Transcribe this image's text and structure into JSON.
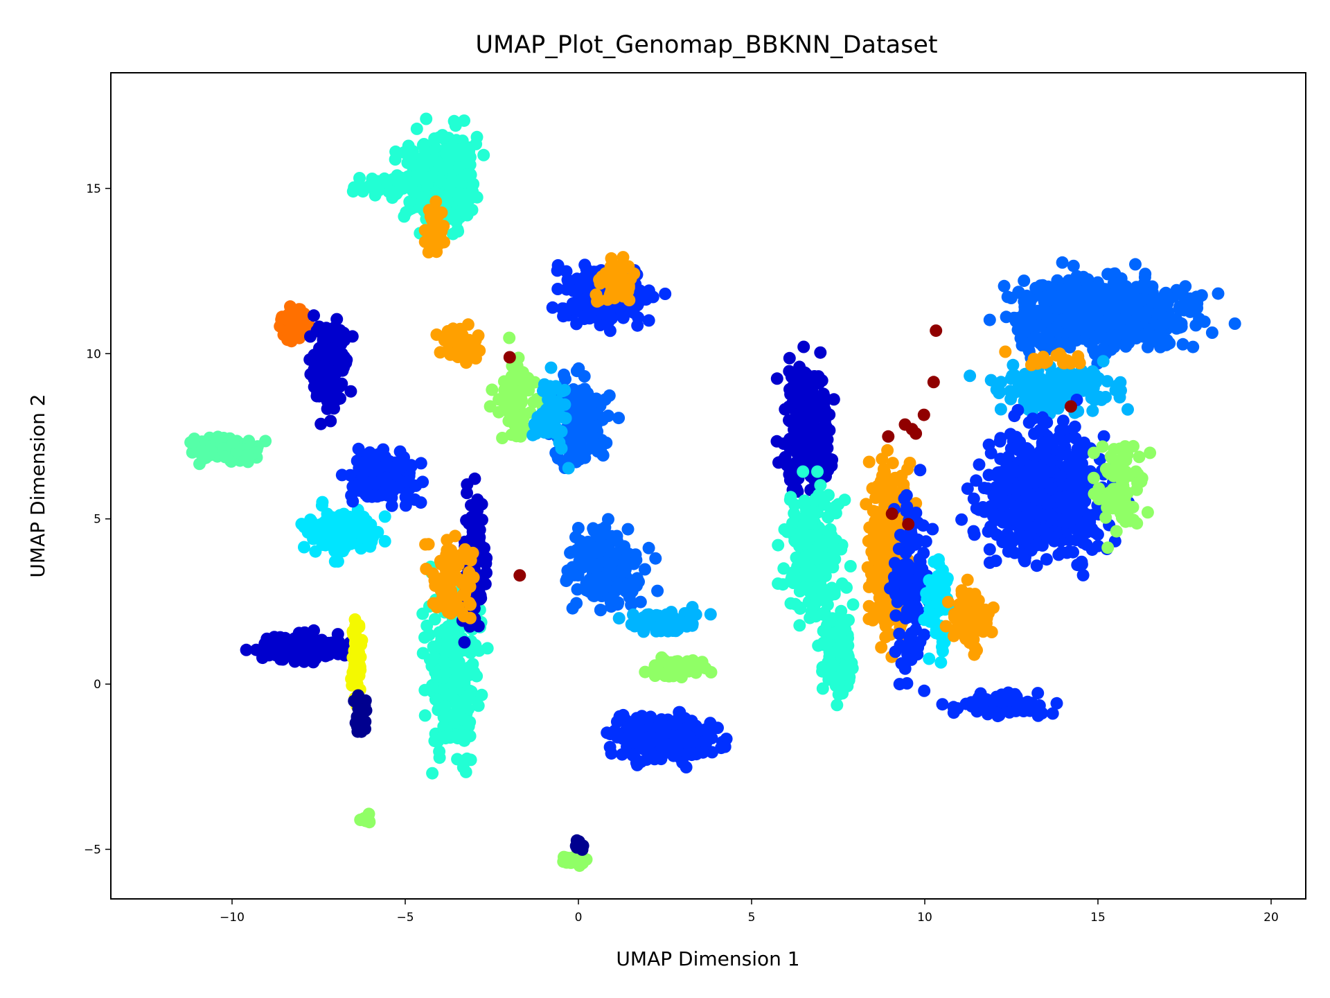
{
  "chart_data": {
    "type": "scatter",
    "title": "UMAP_Plot_Genomap_BBKNN_Dataset",
    "xlabel": "UMAP Dimension 1",
    "ylabel": "UMAP Dimension 2",
    "xlim": [
      -13.5,
      21
    ],
    "ylim": [
      -6.5,
      18.5
    ],
    "xticks": [
      -10,
      -5,
      0,
      5,
      10,
      15,
      20
    ],
    "yticks": [
      -5,
      0,
      5,
      10,
      15
    ],
    "xtick_labels": [
      "−10",
      "−5",
      "0",
      "5",
      "10",
      "15",
      "20"
    ],
    "ytick_labels": [
      "−5",
      "0",
      "5",
      "10",
      "15"
    ],
    "grid": false,
    "legend": "none",
    "colormap": "jet",
    "palette": {
      "navy": "#00008f",
      "darkblue": "#0000cd",
      "blue": "#0030ff",
      "azure": "#0066ff",
      "skyblue": "#00b4ff",
      "cyan": "#00e5ff",
      "aquamarine": "#22ffd4",
      "seagreen": "#55ffa8",
      "lightgreen": "#90ff66",
      "yellow": "#f4f900",
      "orange": "#ffa000",
      "darkorange": "#ff7000",
      "darkred": "#900000"
    },
    "clusters": [
      {
        "color": "aquamarine",
        "x": -4.0,
        "y": 15.3,
        "sx": 0.9,
        "sy": 1.2,
        "n": 320
      },
      {
        "color": "aquamarine",
        "x": -5.6,
        "y": 15.1,
        "sx": 0.7,
        "sy": 0.25,
        "n": 60
      },
      {
        "color": "orange",
        "x": -4.1,
        "y": 13.8,
        "sx": 0.25,
        "sy": 0.6,
        "n": 40
      },
      {
        "color": "darkorange",
        "x": -8.2,
        "y": 10.9,
        "sx": 0.5,
        "sy": 0.4,
        "n": 60
      },
      {
        "color": "darkblue",
        "x": -7.2,
        "y": 9.6,
        "sx": 0.45,
        "sy": 1.2,
        "n": 150
      },
      {
        "color": "seagreen",
        "x": -10.2,
        "y": 7.1,
        "sx": 0.9,
        "sy": 0.3,
        "n": 120
      },
      {
        "color": "cyan",
        "x": -6.8,
        "y": 4.6,
        "sx": 0.9,
        "sy": 0.6,
        "n": 140
      },
      {
        "color": "blue",
        "x": -5.6,
        "y": 6.3,
        "sx": 0.9,
        "sy": 0.7,
        "n": 160
      },
      {
        "color": "darkblue",
        "x": -8.0,
        "y": 1.1,
        "sx": 1.1,
        "sy": 0.35,
        "n": 180
      },
      {
        "color": "yellow",
        "x": -6.4,
        "y": 0.8,
        "sx": 0.12,
        "sy": 1.2,
        "n": 60
      },
      {
        "color": "navy",
        "x": -6.3,
        "y": -1.0,
        "sx": 0.15,
        "sy": 0.5,
        "n": 30
      },
      {
        "color": "aquamarine",
        "x": -3.6,
        "y": 0.5,
        "sx": 0.7,
        "sy": 2.3,
        "n": 260
      },
      {
        "color": "darkblue",
        "x": -3.0,
        "y": 3.8,
        "sx": 0.3,
        "sy": 1.8,
        "n": 120
      },
      {
        "color": "orange",
        "x": -3.6,
        "y": 3.2,
        "sx": 0.6,
        "sy": 1.1,
        "n": 70
      },
      {
        "color": "orange",
        "x": -3.5,
        "y": 10.2,
        "sx": 0.6,
        "sy": 0.5,
        "n": 60
      },
      {
        "color": "lightgreen",
        "x": -1.8,
        "y": 8.6,
        "sx": 0.5,
        "sy": 1.2,
        "n": 80
      },
      {
        "color": "blue",
        "x": 0.7,
        "y": 11.8,
        "sx": 1.2,
        "sy": 0.8,
        "n": 230
      },
      {
        "color": "orange",
        "x": 1.0,
        "y": 12.2,
        "sx": 0.5,
        "sy": 0.6,
        "n": 50
      },
      {
        "color": "azure",
        "x": 0.0,
        "y": 8.0,
        "sx": 0.8,
        "sy": 1.2,
        "n": 160
      },
      {
        "color": "skyblue",
        "x": -0.8,
        "y": 8.2,
        "sx": 0.4,
        "sy": 1.0,
        "n": 60
      },
      {
        "color": "azure",
        "x": 0.8,
        "y": 3.5,
        "sx": 0.9,
        "sy": 1.0,
        "n": 200
      },
      {
        "color": "skyblue",
        "x": 2.5,
        "y": 1.9,
        "sx": 0.9,
        "sy": 0.3,
        "n": 90
      },
      {
        "color": "lightgreen",
        "x": 2.8,
        "y": 0.5,
        "sx": 0.8,
        "sy": 0.3,
        "n": 60
      },
      {
        "color": "blue",
        "x": 2.5,
        "y": -1.6,
        "sx": 1.3,
        "sy": 0.6,
        "n": 260
      },
      {
        "color": "lightgreen",
        "x": -0.1,
        "y": -5.3,
        "sx": 0.3,
        "sy": 0.15,
        "n": 40
      },
      {
        "color": "navy",
        "x": 0.0,
        "y": -4.8,
        "sx": 0.1,
        "sy": 0.25,
        "n": 10
      },
      {
        "color": "lightgreen",
        "x": -6.1,
        "y": -4.1,
        "sx": 0.15,
        "sy": 0.15,
        "n": 10
      },
      {
        "color": "darkblue",
        "x": 6.6,
        "y": 7.8,
        "sx": 0.6,
        "sy": 1.6,
        "n": 260
      },
      {
        "color": "aquamarine",
        "x": 6.8,
        "y": 4.0,
        "sx": 0.7,
        "sy": 1.8,
        "n": 200
      },
      {
        "color": "aquamarine",
        "x": 7.5,
        "y": 1.0,
        "sx": 0.5,
        "sy": 1.2,
        "n": 100
      },
      {
        "color": "orange",
        "x": 9.0,
        "y": 4.0,
        "sx": 0.5,
        "sy": 2.2,
        "n": 320
      },
      {
        "color": "blue",
        "x": 9.6,
        "y": 3.0,
        "sx": 0.5,
        "sy": 2.5,
        "n": 120
      },
      {
        "color": "cyan",
        "x": 10.4,
        "y": 2.3,
        "sx": 0.3,
        "sy": 1.3,
        "n": 60
      },
      {
        "color": "orange",
        "x": 11.4,
        "y": 2.0,
        "sx": 0.6,
        "sy": 1.0,
        "n": 80
      },
      {
        "color": "blue",
        "x": 12.2,
        "y": -0.6,
        "sx": 1.2,
        "sy": 0.3,
        "n": 90
      },
      {
        "color": "azure",
        "x": 15.2,
        "y": 11.2,
        "sx": 2.4,
        "sy": 1.0,
        "n": 620
      },
      {
        "color": "skyblue",
        "x": 13.8,
        "y": 8.9,
        "sx": 1.5,
        "sy": 0.55,
        "n": 180
      },
      {
        "color": "blue",
        "x": 13.5,
        "y": 5.8,
        "sx": 1.6,
        "sy": 1.7,
        "n": 600
      },
      {
        "color": "lightgreen",
        "x": 15.6,
        "y": 6.0,
        "sx": 0.6,
        "sy": 1.3,
        "n": 80
      },
      {
        "color": "orange",
        "x": 13.5,
        "y": 9.8,
        "sx": 1.2,
        "sy": 0.2,
        "n": 20
      },
      {
        "color": "darkred",
        "x": 9.6,
        "y": 7.0,
        "sx": 0.7,
        "sy": 2.5,
        "n": 8
      },
      {
        "color": "darkred",
        "x": -1.7,
        "y": 3.3,
        "sx": 0.05,
        "sy": 0.05,
        "n": 1
      },
      {
        "color": "darkred",
        "x": -2.0,
        "y": 9.9,
        "sx": 0.05,
        "sy": 0.05,
        "n": 1
      },
      {
        "color": "darkred",
        "x": 10.3,
        "y": 10.7,
        "sx": 0.05,
        "sy": 0.05,
        "n": 1
      },
      {
        "color": "darkred",
        "x": 14.2,
        "y": 8.4,
        "sx": 0.05,
        "sy": 0.05,
        "n": 1
      }
    ]
  }
}
